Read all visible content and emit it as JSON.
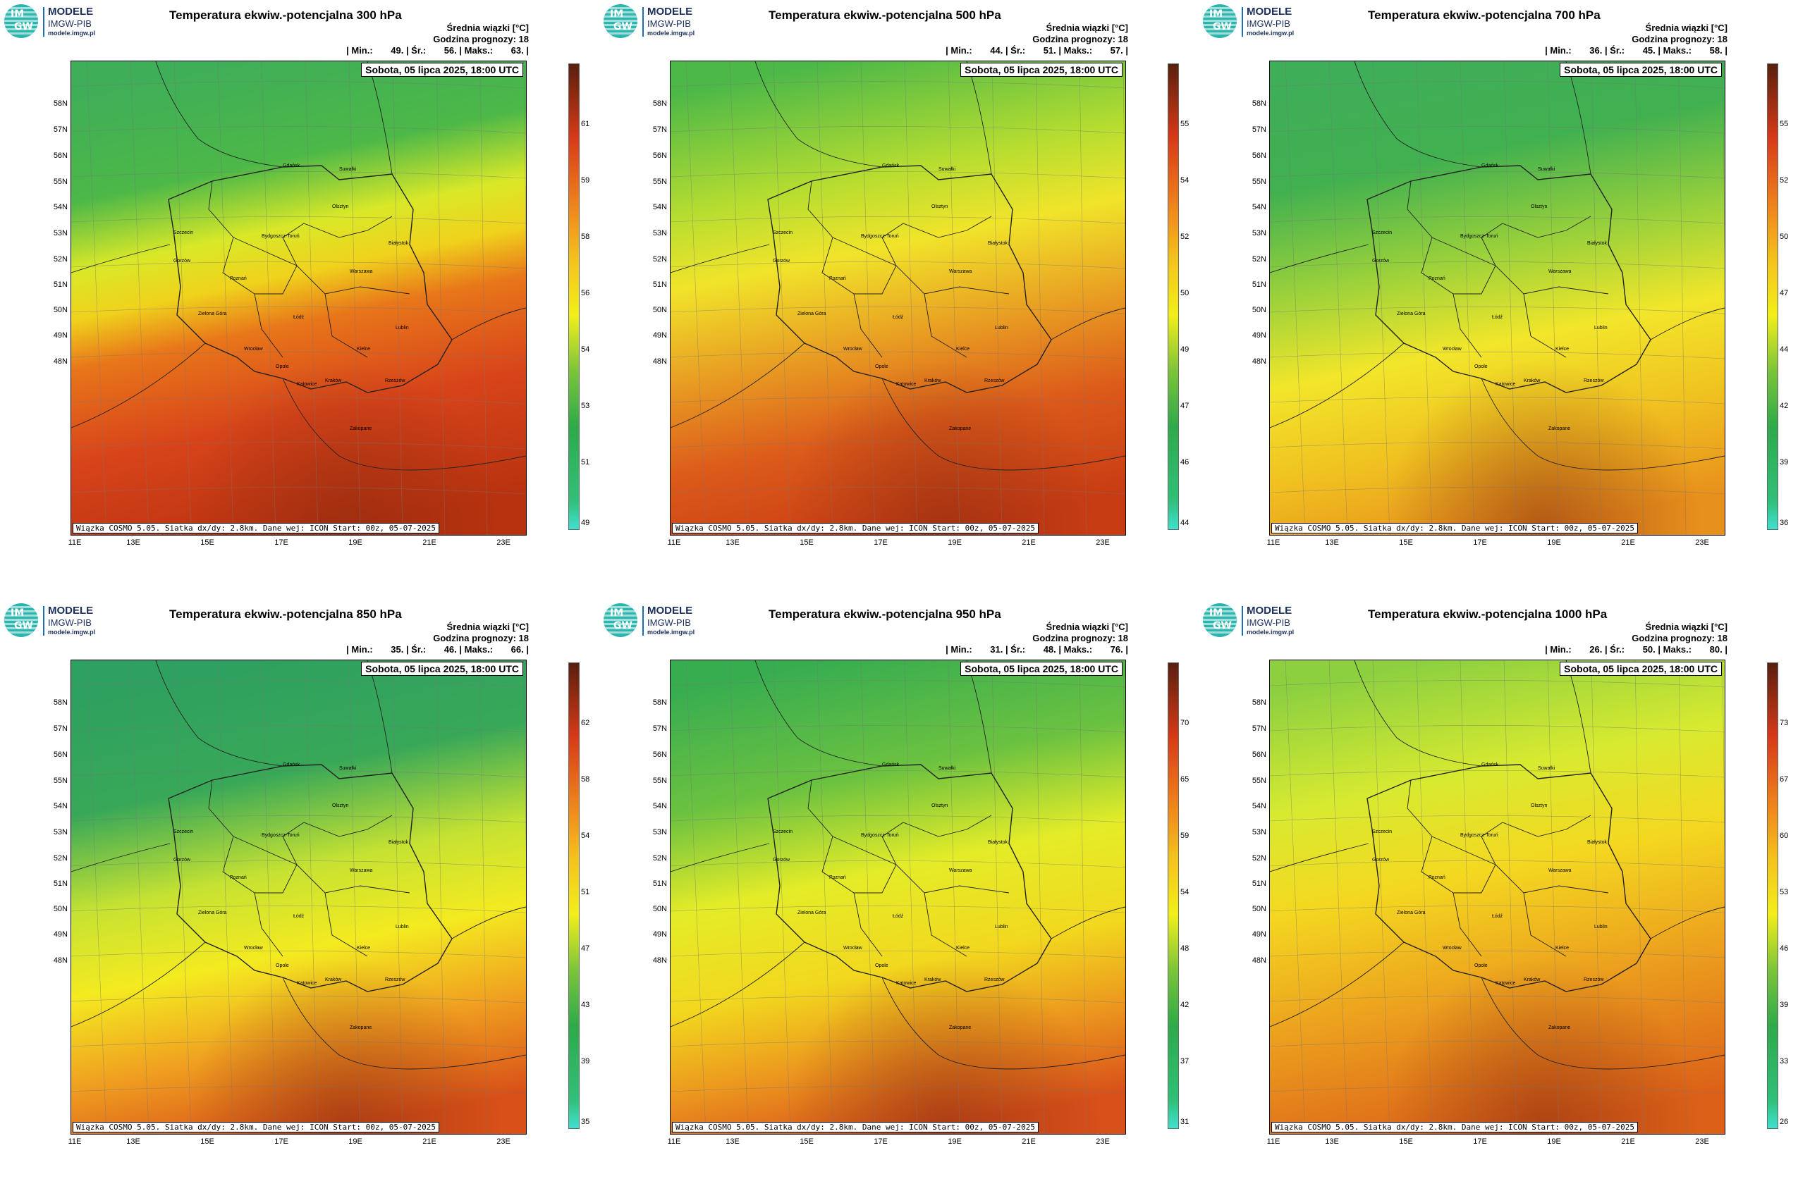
{
  "logo": {
    "disc_top": "IM",
    "disc_bottom": "GW",
    "line1": "MODELE",
    "line2": "IMGW-PIB",
    "line3": "modele.imgw.pl"
  },
  "common": {
    "subtitle": "Średnia wiązki [°C]",
    "forecast_hour": "Godzina prognozy: 18",
    "date": "Sobota, 05 lipca 2025, 18:00 UTC",
    "footer": "Wiązka COSMO 5.05. Siatka dx/dy: 2.8km. Dane wej: ICON Start: 00z, 05-07-2025",
    "min_label": "| Min.:",
    "mean_label": "| Śr.:",
    "max_label": "| Maks.:",
    "end_bar": "|",
    "lat_labels": [
      "58N",
      "57N",
      "56N",
      "55N",
      "54N",
      "53N",
      "52N",
      "51N",
      "50N",
      "49N",
      "48N"
    ],
    "lon_labels": [
      "11E",
      "13E",
      "15E",
      "17E",
      "19E",
      "21E",
      "23E"
    ],
    "cities": [
      "Gdańsk",
      "Suwałki",
      "Olsztyn",
      "Szczecin",
      "Bydgoszcz-Toruń",
      "Białystok",
      "Gorzów",
      "Warszawa",
      "Poznań",
      "Zielona Góra",
      "Łódź",
      "Lublin",
      "Wrocław",
      "Kielce",
      "Opole",
      "Katowice",
      "Kraków",
      "Rzeszów",
      "Zakopane"
    ]
  },
  "colors": {
    "cold": "#40e0d0",
    "green": "#2eaa4a",
    "yellow": "#f2ef1a",
    "orange": "#f08c1c",
    "red": "#d83a18",
    "dark": "#5a1f0e"
  },
  "panels": [
    {
      "title": "Temperatura ekwiw.-potencjalna 300 hPa",
      "min": "49.",
      "mean": "56.",
      "max": "63.",
      "ticks": [
        "61",
        "59",
        "58",
        "56",
        "54",
        "53",
        "51",
        "49"
      ],
      "range": [
        49,
        63
      ]
    },
    {
      "title": "Temperatura ekwiw.-potencjalna 500 hPa",
      "min": "44.",
      "mean": "51.",
      "max": "57.",
      "ticks": [
        "55",
        "54",
        "52",
        "50",
        "49",
        "47",
        "46",
        "44"
      ],
      "range": [
        44,
        57
      ]
    },
    {
      "title": "Temperatura ekwiw.-potencjalna 700 hPa",
      "min": "36.",
      "mean": "45.",
      "max": "58.",
      "ticks": [
        "55",
        "52",
        "50",
        "47",
        "44",
        "42",
        "39",
        "36"
      ],
      "range": [
        36,
        58
      ]
    },
    {
      "title": "Temperatura ekwiw.-potencjalna 850 hPa",
      "min": "35.",
      "mean": "46.",
      "max": "66.",
      "ticks": [
        "62",
        "58",
        "54",
        "51",
        "47",
        "43",
        "39",
        "35"
      ],
      "range": [
        35,
        66
      ]
    },
    {
      "title": "Temperatura ekwiw.-potencjalna 950 hPa",
      "min": "31.",
      "mean": "48.",
      "max": "76.",
      "ticks": [
        "70",
        "65",
        "59",
        "54",
        "48",
        "42",
        "37",
        "31"
      ],
      "range": [
        31,
        76
      ]
    },
    {
      "title": "Temperatura ekwiw.-potencjalna 1000 hPa",
      "min": "26.",
      "mean": "50.",
      "max": "80.",
      "ticks": [
        "73",
        "67",
        "60",
        "53",
        "46",
        "39",
        "33",
        "26"
      ],
      "range": [
        26,
        80
      ]
    }
  ]
}
